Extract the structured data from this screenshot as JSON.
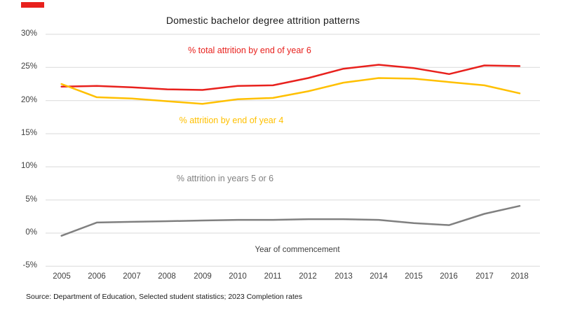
{
  "brand": {
    "mark_color": "#e8211d"
  },
  "colors": {
    "gridline": "#d9d9d9",
    "axis_text": "#404040",
    "title_text": "#1a1a1a"
  },
  "chart_data": {
    "type": "line",
    "title": "Domestic bachelor degree attrition patterns",
    "xlabel": "Year of commencement",
    "ylabel": "",
    "ylim": [
      -5,
      30
    ],
    "grid": "horizontal",
    "legend": "inline-labels",
    "x": [
      "2005",
      "2006",
      "2007",
      "2008",
      "2009",
      "2010",
      "2011",
      "2012",
      "2013",
      "2014",
      "2015",
      "2016",
      "2017",
      "2018"
    ],
    "ytick_values": [
      30,
      25,
      20,
      15,
      10,
      5,
      0,
      -5
    ],
    "ytick_labels": [
      "30%",
      "25%",
      "20%",
      "15%",
      "10%",
      "5%",
      "0%",
      "-5%"
    ],
    "series": [
      {
        "name": "% total attrition by end of year 6",
        "color": "#e8211d",
        "values": [
          22.1,
          22.2,
          22.0,
          21.7,
          21.6,
          22.2,
          22.3,
          23.4,
          24.8,
          25.4,
          24.9,
          24.0,
          25.3,
          25.2
        ]
      },
      {
        "name": "% attrition by end of year 4",
        "color": "#ffc000",
        "values": [
          22.5,
          20.5,
          20.3,
          19.9,
          19.5,
          20.2,
          20.4,
          21.4,
          22.7,
          23.4,
          23.3,
          22.8,
          22.3,
          21.1
        ]
      },
      {
        "name": "% attrition in years 5 or 6",
        "color": "#808080",
        "values": [
          -0.4,
          1.6,
          1.7,
          1.8,
          1.9,
          2.0,
          2.0,
          2.1,
          2.1,
          2.0,
          1.5,
          1.2,
          2.9,
          4.1
        ]
      }
    ]
  },
  "source": "Source: Department of Education, Selected student statistics; 2023 Completion rates"
}
